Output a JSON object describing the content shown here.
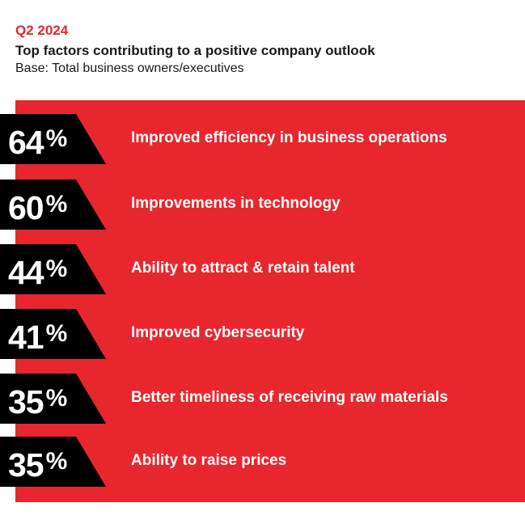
{
  "header": {
    "period": "Q2 2024",
    "title": "Top factors contributing to a positive company outlook",
    "base": "Base: Total business owners/executives"
  },
  "colors": {
    "accent": "#e8262e",
    "tab": "#000000",
    "text_on_accent": "#ffffff"
  },
  "chart_data": {
    "type": "bar",
    "title": "Top factors contributing to a positive company outlook",
    "subtitle": "Base: Total business owners/executives",
    "unit": "%",
    "categories": [
      "Improved efficiency in business operations",
      "Improvements in technology",
      "Ability to attract & retain talent",
      "Improved cybersecurity",
      "Better timeliness of receiving raw materials",
      "Ability to raise prices"
    ],
    "values": [
      64,
      60,
      44,
      41,
      35,
      35
    ]
  }
}
